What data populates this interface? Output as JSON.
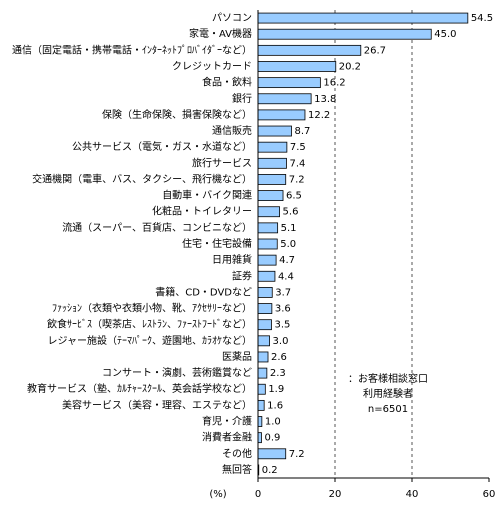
{
  "chart_data": {
    "type": "bar",
    "orientation": "horizontal",
    "categories": [
      "パソコン",
      "家電・AV機器",
      "通信（固定電話・携帯電話・ｲﾝﾀｰﾈｯﾄﾌﾟﾛﾊﾞｲﾀﾞｰなど）",
      "クレジットカード",
      "食品・飲料",
      "銀行",
      "保険（生命保険、損害保険など）",
      "通信販売",
      "公共サービス（電気・ガス・水道など）",
      "旅行サービス",
      "交通機関（電車、バス、タクシー、飛行機など）",
      "自動車・バイク関連",
      "化粧品・トイレタリー",
      "流通（スーパー、百貨店、コンビニなど）",
      "住宅・住宅設備",
      "日用雑貨",
      "証券",
      "書籍、CD・DVDなど",
      "ﾌｧｯｼｮﾝ（衣類や衣類小物、靴、ｱｸｾｻﾘｰなど）",
      "飲食ｻｰﾋﾞｽ（喫茶店、ﾚｽﾄﾗﾝ、ﾌｧｰｽﾄﾌｰﾄﾞなど）",
      "レジャー施設（ﾃｰﾏﾊﾟｰｸ、遊園地、ｶﾗｵｹなど）",
      "医薬品",
      "コンサート・演劇、芸術鑑賞など",
      "教育サービス（塾、ｶﾙﾁｬｰｽｸｰﾙ、英会話学校など）",
      "美容サービス（美容・理容、エステなど）",
      "育児・介護",
      "消費者金融",
      "その他",
      "無回答"
    ],
    "values": [
      54.5,
      45.0,
      26.7,
      20.2,
      16.2,
      13.8,
      12.2,
      8.7,
      7.5,
      7.4,
      7.2,
      6.5,
      5.6,
      5.1,
      5.0,
      4.7,
      4.4,
      3.7,
      3.6,
      3.5,
      3.0,
      2.6,
      2.3,
      1.9,
      1.6,
      1.0,
      0.9,
      7.2,
      0.2
    ],
    "value_labels": [
      "54.5",
      "45.0",
      "26.7",
      "20.2",
      "16.2",
      "13.8",
      "12.2",
      "8.7",
      "7.5",
      "7.4",
      "7.2",
      "6.5",
      "5.6",
      "5.1",
      "5.0",
      "4.7",
      "4.4",
      "3.7",
      "3.6",
      "3.5",
      "3.0",
      "2.6",
      "2.3",
      "1.9",
      "1.6",
      "1.0",
      "0.9",
      "7.2",
      "0.2"
    ],
    "color": "#99ccff",
    "xlim": [
      0,
      60
    ],
    "xticks": [
      0,
      20,
      40,
      60
    ],
    "x_label": "(%)",
    "grid": true,
    "annotations": [
      "：お客様相談窓口",
      "利用経験者",
      "n=6501"
    ]
  }
}
